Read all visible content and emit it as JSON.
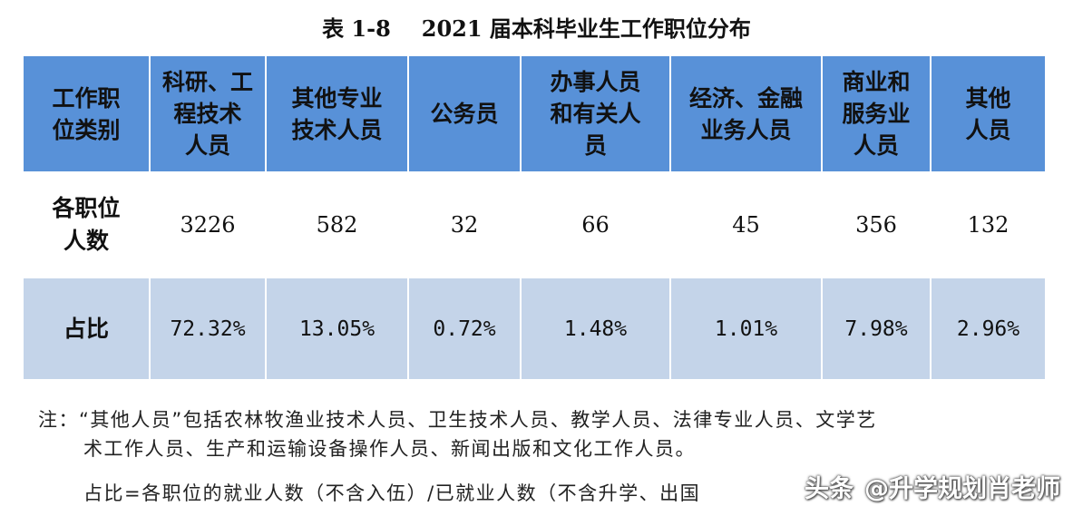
{
  "title": {
    "table_no": "表 1-8",
    "text": "2021 届本科毕业生工作职位分布"
  },
  "table": {
    "header": [
      [
        "工作职",
        "位类别"
      ],
      [
        "科研、工",
        "程技术",
        "人员"
      ],
      [
        "其他专业",
        "技术人员"
      ],
      [
        "公务员"
      ],
      [
        "办事人员",
        "和有关人",
        "员"
      ],
      [
        "经济、金融",
        "业务人员"
      ],
      [
        "商业和",
        "服务业",
        "人员"
      ],
      [
        "其他",
        "人员"
      ]
    ],
    "rows": [
      {
        "label": [
          "各职位",
          "人数"
        ],
        "values": [
          "3226",
          "582",
          "32",
          "66",
          "45",
          "356",
          "132"
        ]
      },
      {
        "label": [
          "占比"
        ],
        "values": [
          "72.32%",
          "13.05%",
          "0.72%",
          "1.48%",
          "1.01%",
          "7.98%",
          "2.96%"
        ]
      }
    ]
  },
  "notes": {
    "line1": "注：“其他人员”包括农林牧渔业技术人员、卫生技术人员、教学人员、法律专业人员、文学艺",
    "line2": "术工作人员、生产和运输设备操作人员、新闻出版和文化工作人员。",
    "line3": "占比=各职位的就业人数（不含入伍）/已就业人数（不含升学、出国"
  },
  "watermark": {
    "source": "头条",
    "account": "@升学规划肖老师"
  },
  "colors": {
    "header_bg": "#5891d8",
    "ratio_row_bg": "#c4d4e9"
  }
}
